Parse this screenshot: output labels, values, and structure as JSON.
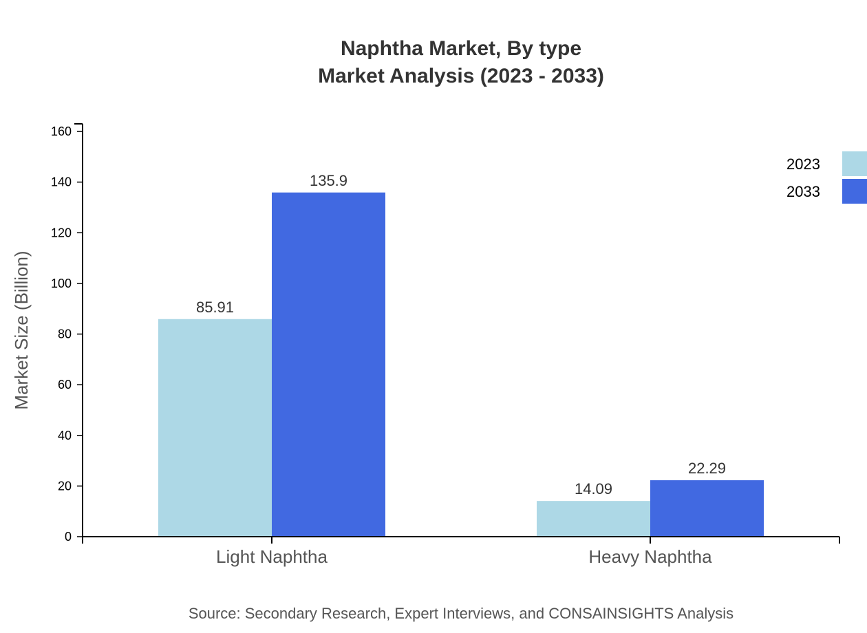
{
  "chart_data": {
    "type": "bar",
    "title": "Naphtha Market, By type",
    "subtitle": "Market Analysis (2023 - 2033)",
    "xlabel": "",
    "ylabel": "Market Size (Billion)",
    "ylim": [
      0,
      163
    ],
    "yticks": [
      0,
      20,
      40,
      60,
      80,
      100,
      120,
      140,
      160
    ],
    "grid": false,
    "legend_position": "top-right",
    "categories": [
      "Light Naphtha",
      "Heavy Naphtha"
    ],
    "series": [
      {
        "name": "2023",
        "color": "#add8e6",
        "values": [
          85.91,
          14.09
        ],
        "labels": [
          "85.91",
          "14.09"
        ]
      },
      {
        "name": "2033",
        "color": "#4169e1",
        "values": [
          135.9,
          22.29
        ],
        "labels": [
          "135.9",
          "22.29"
        ]
      }
    ],
    "source": "Source: Secondary Research, Expert Interviews, and CONSAINSIGHTS Analysis"
  }
}
